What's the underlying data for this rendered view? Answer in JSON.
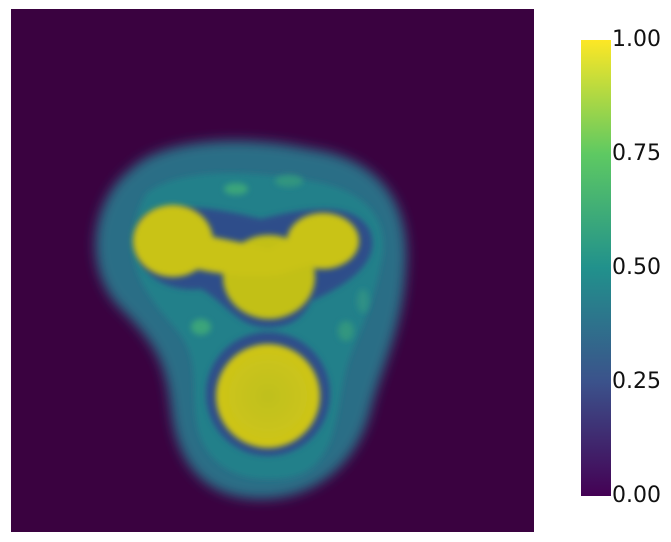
{
  "colormap": {
    "name": "viridis",
    "stops": [
      "#440154",
      "#3b528b",
      "#21918c",
      "#5ec962",
      "#fde725"
    ]
  },
  "field_colors": {
    "background": "#3a0240",
    "halo_outer": "#2a6e86",
    "halo_inner": "#24808a",
    "trough": "#2d4d8a",
    "blob": "#c9c318",
    "blob_center": "#bfc01b"
  },
  "colorbar": {
    "ticks": [
      {
        "value": 1.0,
        "label": "1.00"
      },
      {
        "value": 0.75,
        "label": "0.75"
      },
      {
        "value": 0.5,
        "label": "0.50"
      },
      {
        "value": 0.25,
        "label": "0.25"
      },
      {
        "value": 0.0,
        "label": "0.00"
      }
    ]
  }
}
